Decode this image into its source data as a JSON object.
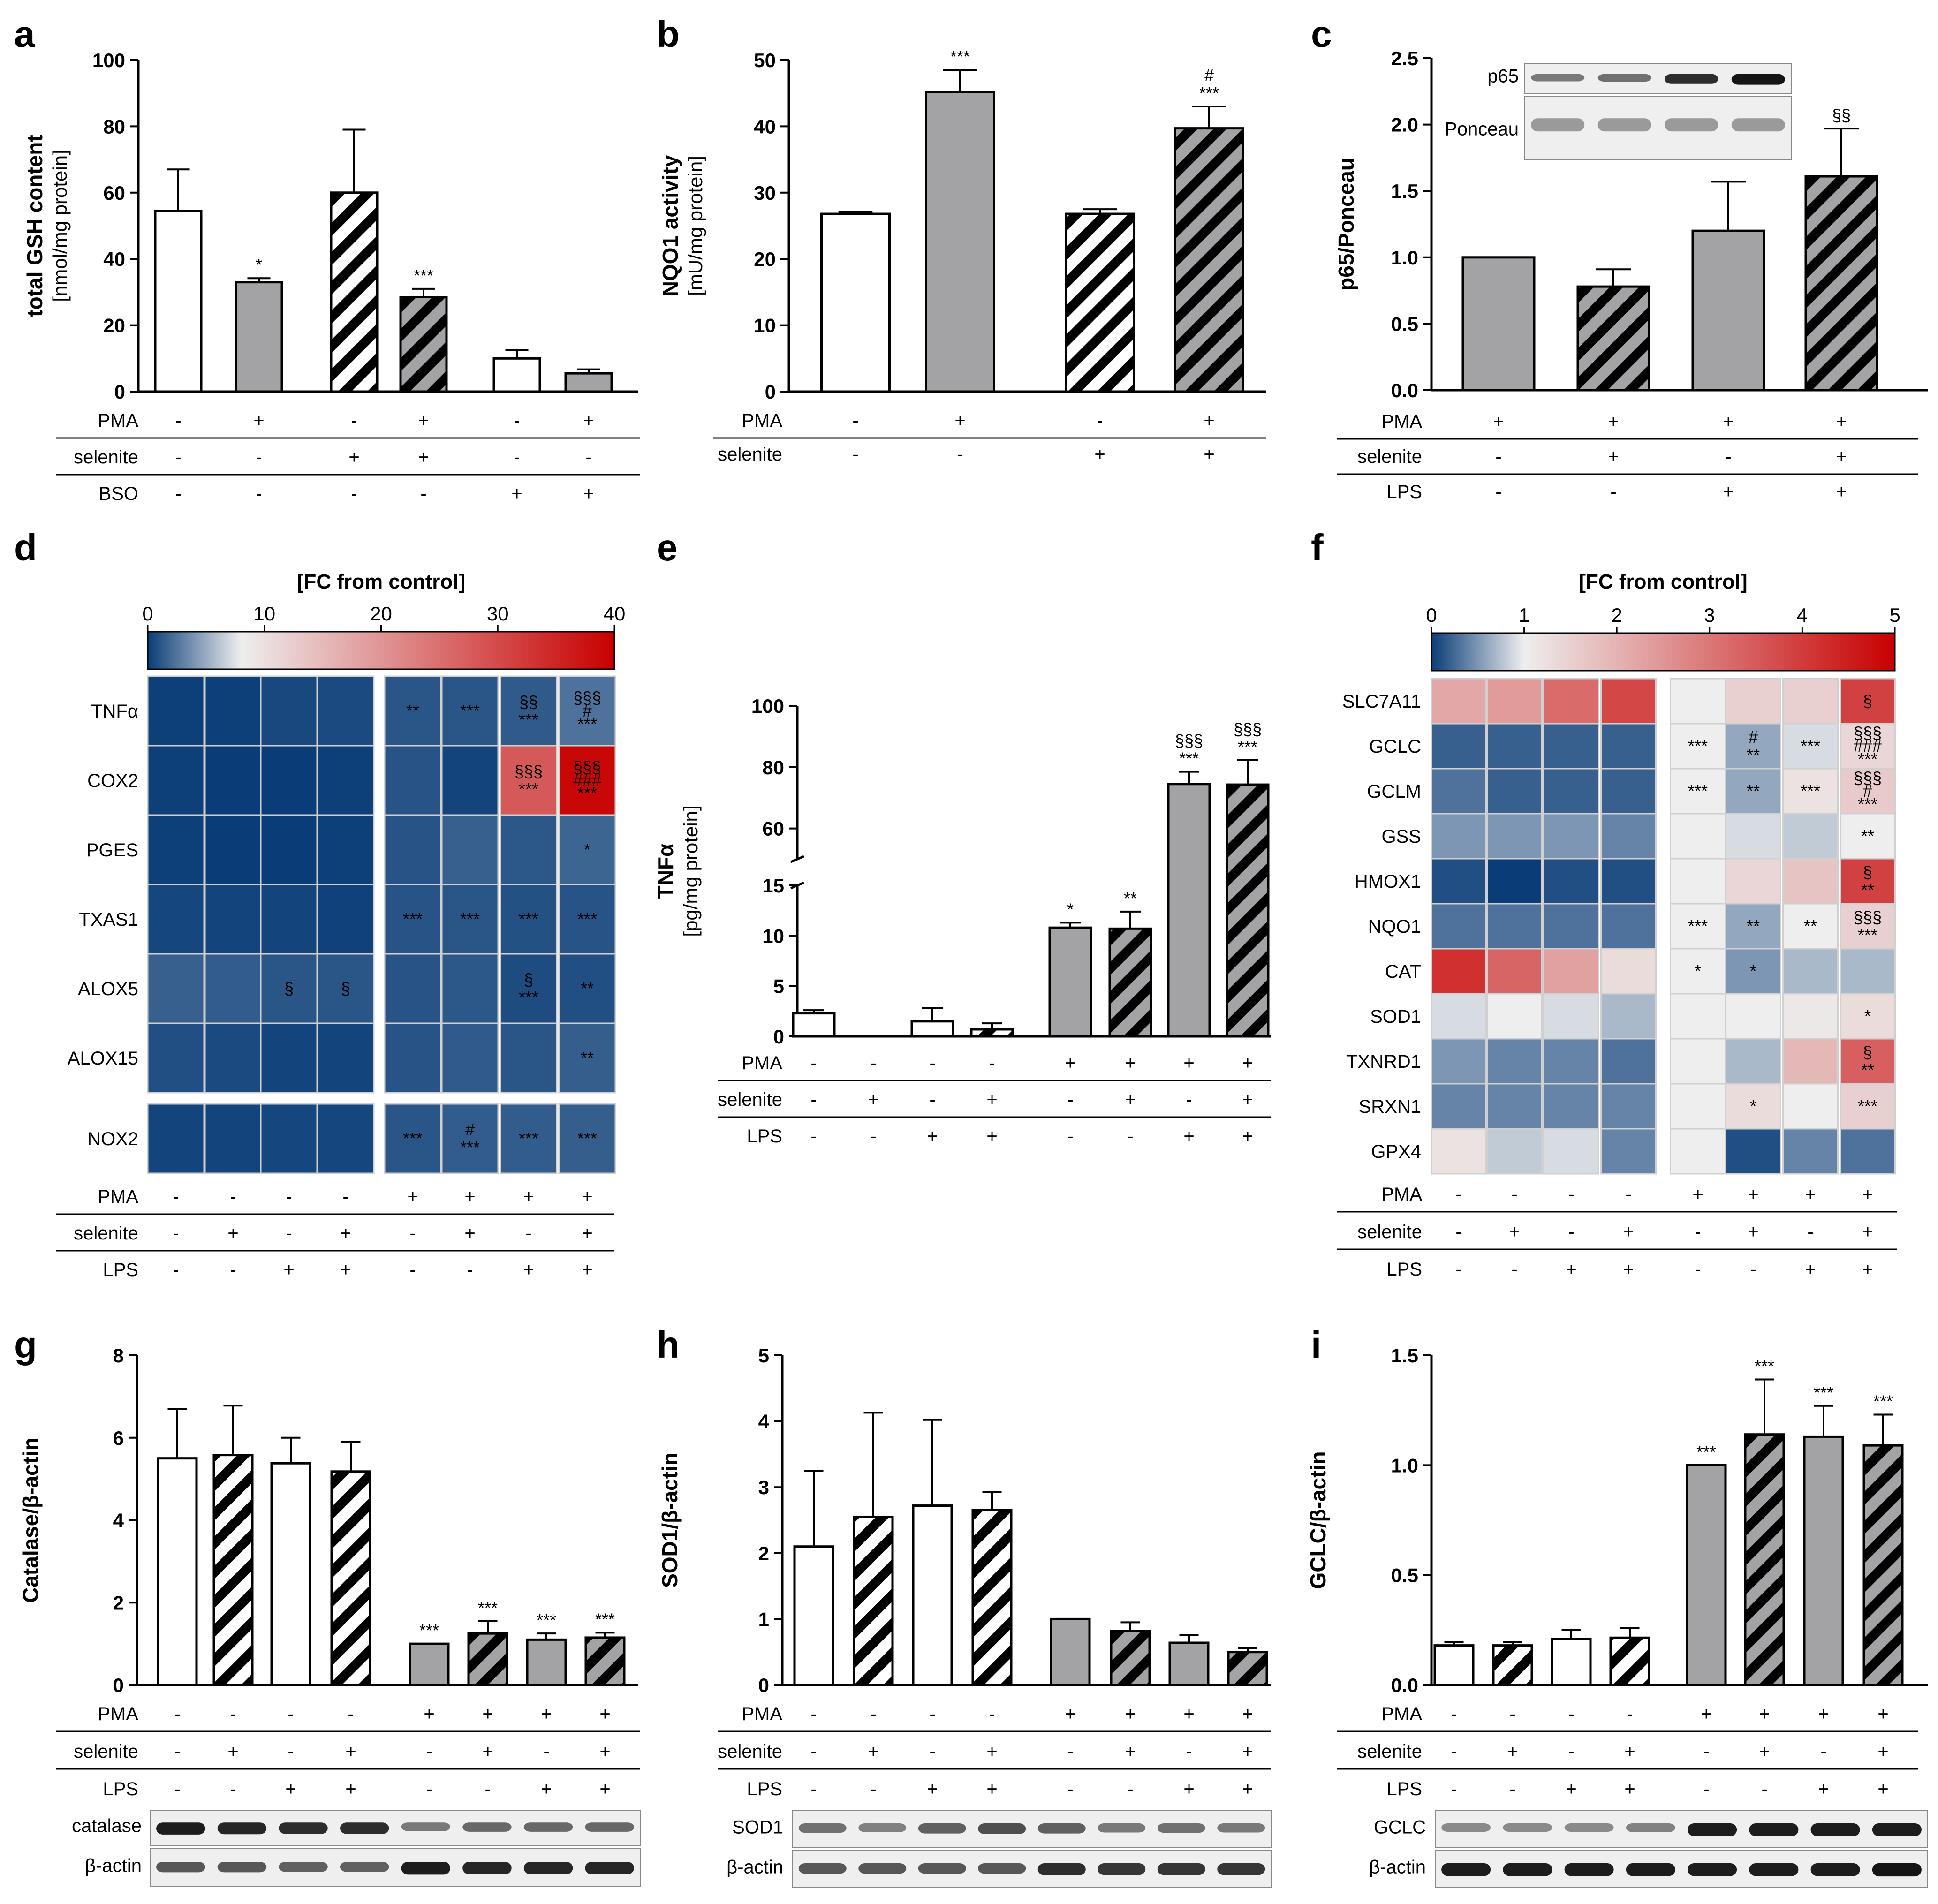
{
  "hatch_color": "#a3a3a6",
  "bar_colors": {
    "white": "#ffffff",
    "gray": "#a3a3a6",
    "axis": "#000000"
  },
  "colormap": {
    "low": "#0a3d77",
    "mid": "#eeeeee",
    "high": "#c80000"
  },
  "chart_data": [
    {
      "id": "a",
      "type": "bar",
      "panel_label": "a",
      "ylabel": "total GSH content",
      "ylabel_sub": "[nmol/mg protein]",
      "ylim": [
        0,
        100
      ],
      "yticks": [
        0,
        20,
        40,
        60,
        80,
        100
      ],
      "bars": [
        {
          "value": 54.5,
          "err": 12.5,
          "style": "white",
          "sig": ""
        },
        {
          "value": 33,
          "err": 1.2,
          "style": "gray",
          "sig": "*"
        },
        {
          "value": 60,
          "err": 19,
          "style": "hatch-white",
          "sig": ""
        },
        {
          "value": 28.5,
          "err": 2.5,
          "style": "hatch-gray",
          "sig": "***"
        },
        {
          "value": 10,
          "err": 2.5,
          "style": "white",
          "sig": ""
        },
        {
          "value": 5.5,
          "err": 1.2,
          "style": "gray",
          "sig": ""
        }
      ],
      "conditions": [
        {
          "label": "PMA",
          "values": [
            "-",
            "+",
            "-",
            "+",
            "-",
            "+"
          ]
        },
        {
          "label": "selenite",
          "values": [
            "-",
            "-",
            "+",
            "+",
            "-",
            "-"
          ]
        },
        {
          "label": "BSO",
          "values": [
            "-",
            "-",
            "-",
            "-",
            "+",
            "+"
          ]
        }
      ]
    },
    {
      "id": "b",
      "type": "bar",
      "panel_label": "b",
      "ylabel": "NQO1 activity",
      "ylabel_sub": "[mU/mg protein]",
      "ylim": [
        0,
        50
      ],
      "yticks": [
        0,
        10,
        20,
        30,
        40,
        50
      ],
      "bars": [
        {
          "value": 26.8,
          "err": 0.3,
          "style": "white",
          "sig": ""
        },
        {
          "value": 45.2,
          "err": 3.3,
          "style": "gray",
          "sig": "***"
        },
        {
          "value": 26.8,
          "err": 0.7,
          "style": "hatch-white",
          "sig": ""
        },
        {
          "value": 39.7,
          "err": 3.3,
          "style": "hatch-gray",
          "sig": "#\n***"
        }
      ],
      "conditions": [
        {
          "label": "PMA",
          "values": [
            "-",
            "+",
            "-",
            "+"
          ]
        },
        {
          "label": "selenite",
          "values": [
            "-",
            "-",
            "+",
            "+"
          ]
        }
      ]
    },
    {
      "id": "c",
      "type": "bar",
      "panel_label": "c",
      "ylabel": "p65/Ponceau",
      "ylabel_sub": "",
      "ylim": [
        0,
        2.5
      ],
      "yticks": [
        "0.0",
        "0.5",
        "1.0",
        "1.5",
        "2.0",
        "2.5"
      ],
      "bars": [
        {
          "value": 1.0,
          "err": 0,
          "style": "gray",
          "sig": ""
        },
        {
          "value": 0.78,
          "err": 0.13,
          "style": "hatch-gray",
          "sig": ""
        },
        {
          "value": 1.2,
          "err": 0.37,
          "style": "gray",
          "sig": ""
        },
        {
          "value": 1.61,
          "err": 0.36,
          "style": "hatch-gray",
          "sig": "§§"
        }
      ],
      "conditions": [
        {
          "label": "PMA",
          "values": [
            "+",
            "+",
            "+",
            "+"
          ]
        },
        {
          "label": "selenite",
          "values": [
            "-",
            "+",
            "-",
            "+"
          ]
        },
        {
          "label": "LPS",
          "values": [
            "-",
            "-",
            "+",
            "+"
          ]
        }
      ],
      "blots": [
        "p65",
        "Ponceau"
      ]
    },
    {
      "id": "d",
      "type": "heatmap",
      "panel_label": "d",
      "colorbar_title": "[FC from control]",
      "colorbar_ticks": [
        "0",
        "10",
        "20",
        "30",
        "40"
      ],
      "vmin": 0,
      "vmax": 40,
      "rows": [
        "TNFα",
        "COX2",
        "PGES",
        "TXAS1",
        "ALOX5",
        "ALOX15",
        "NOX2"
      ],
      "values": [
        [
          0.1,
          0.1,
          0.5,
          0.6,
          1.1,
          1.1,
          1.3,
          2.4
        ],
        [
          0.1,
          0.0,
          0.0,
          0.1,
          1.0,
          0.3,
          28.0,
          39.0
        ],
        [
          0.1,
          0.0,
          0.0,
          0.1,
          1.0,
          1.6,
          1.2,
          1.8
        ],
        [
          0.4,
          0.3,
          0.3,
          0.2,
          1.0,
          1.1,
          0.9,
          1.0
        ],
        [
          1.6,
          1.4,
          1.1,
          1.1,
          1.0,
          1.2,
          0.7,
          0.8
        ],
        [
          0.8,
          0.6,
          0.3,
          0.3,
          1.0,
          1.3,
          1.1,
          1.5
        ],
        [
          0.3,
          0.3,
          0.4,
          0.4,
          1.1,
          1.4,
          1.4,
          1.5
        ]
      ],
      "sig": [
        [
          "",
          "",
          "",
          "",
          "**",
          "***",
          "§§\n***",
          "§§§\n#\n***"
        ],
        [
          "",
          "",
          "",
          "",
          "",
          "",
          "§§§\n***",
          "§§§\n###\n***"
        ],
        [
          "",
          "",
          "",
          "",
          "",
          "",
          "",
          "*"
        ],
        [
          "",
          "",
          "",
          "",
          "***",
          "***",
          "***",
          "***"
        ],
        [
          "",
          "",
          "§",
          "§",
          "",
          "",
          "§\n***",
          "**"
        ],
        [
          "",
          "",
          "",
          "",
          "",
          "",
          "",
          "**"
        ],
        [
          "",
          "",
          "",
          "",
          "***",
          "#\n***",
          "***",
          "***"
        ]
      ],
      "conditions": [
        {
          "label": "PMA",
          "values": [
            "-",
            "-",
            "-",
            "-",
            "+",
            "+",
            "+",
            "+"
          ]
        },
        {
          "label": "selenite",
          "values": [
            "-",
            "+",
            "-",
            "+",
            "-",
            "+",
            "-",
            "+"
          ]
        },
        {
          "label": "LPS",
          "values": [
            "-",
            "-",
            "+",
            "+",
            "-",
            "-",
            "+",
            "+"
          ]
        }
      ]
    },
    {
      "id": "e",
      "type": "bar",
      "panel_label": "e",
      "ylabel": "TNFα",
      "ylabel_sub": "[pg/mg protein]",
      "ylim": [
        0,
        100
      ],
      "axis_break": [
        15,
        50
      ],
      "yticks": [
        0,
        5,
        10,
        15,
        60,
        80,
        100
      ],
      "bars": [
        {
          "value": 2.3,
          "err": 0.3,
          "style": "white",
          "sig": ""
        },
        {
          "value": 0,
          "err": 0,
          "style": "white",
          "sig": ""
        },
        {
          "value": 1.5,
          "err": 1.3,
          "style": "white",
          "sig": ""
        },
        {
          "value": 0.7,
          "err": 0.6,
          "style": "hatch-white",
          "sig": ""
        },
        {
          "value": 10.8,
          "err": 0.5,
          "style": "gray",
          "sig": "*"
        },
        {
          "value": 10.7,
          "err": 1.7,
          "style": "hatch-gray",
          "sig": "**"
        },
        {
          "value": 74.5,
          "err": 4,
          "style": "gray",
          "sig": "§§§\n***"
        },
        {
          "value": 74.3,
          "err": 8,
          "style": "hatch-gray",
          "sig": "§§§\n***"
        }
      ],
      "conditions": [
        {
          "label": "PMA",
          "values": [
            "-",
            "-",
            "-",
            "-",
            "+",
            "+",
            "+",
            "+"
          ]
        },
        {
          "label": "selenite",
          "values": [
            "-",
            "+",
            "-",
            "+",
            "-",
            "+",
            "-",
            "+"
          ]
        },
        {
          "label": "LPS",
          "values": [
            "-",
            "-",
            "+",
            "+",
            "-",
            "-",
            "+",
            "+"
          ]
        }
      ]
    },
    {
      "id": "f",
      "type": "heatmap",
      "panel_label": "f",
      "colorbar_title": "[FC from control]",
      "colorbar_ticks": [
        "0",
        "1",
        "2",
        "3",
        "4",
        "5"
      ],
      "vmin": 0,
      "vmax": 5,
      "rows": [
        "SLC7A11",
        "GCLC",
        "GCLM",
        "GSS",
        "HMOX1",
        "NQO1",
        "CAT",
        "SOD1",
        "TXNRD1",
        "SRXN1",
        "GPX4"
      ],
      "values": [
        [
          2.2,
          2.4,
          3.2,
          3.8,
          1.0,
          1.5,
          1.5,
          3.9
        ],
        [
          0.2,
          0.2,
          0.2,
          0.2,
          1.0,
          0.6,
          0.9,
          1.4
        ],
        [
          0.3,
          0.2,
          0.2,
          0.2,
          1.0,
          0.6,
          1.2,
          1.6
        ],
        [
          0.5,
          0.5,
          0.5,
          0.4,
          1.0,
          0.9,
          0.8,
          1.0
        ],
        [
          0.1,
          0.0,
          0.1,
          0.1,
          1.0,
          1.4,
          1.7,
          3.9
        ],
        [
          0.3,
          0.3,
          0.3,
          0.3,
          1.0,
          0.6,
          1.0,
          1.5
        ],
        [
          4.2,
          3.3,
          2.3,
          1.3,
          1.0,
          0.5,
          0.7,
          0.7
        ],
        [
          0.9,
          1.0,
          0.9,
          0.7,
          1.0,
          1.0,
          1.1,
          1.3
        ],
        [
          0.5,
          0.4,
          0.4,
          0.3,
          1.0,
          0.7,
          1.9,
          3.4
        ],
        [
          0.4,
          0.4,
          0.4,
          0.4,
          1.0,
          1.3,
          1.0,
          1.5
        ],
        [
          1.2,
          0.8,
          0.9,
          0.4,
          1.0,
          0.1,
          0.4,
          0.3
        ]
      ],
      "sig": [
        [
          "",
          "",
          "",
          "",
          "",
          "",
          "",
          "§"
        ],
        [
          "",
          "",
          "",
          "",
          "***",
          "#\n**",
          "***",
          "§§§\n###\n***"
        ],
        [
          "",
          "",
          "",
          "",
          "***",
          "**",
          "***",
          "§§§\n#\n***"
        ],
        [
          "",
          "",
          "",
          "",
          "",
          "",
          "",
          "**"
        ],
        [
          "",
          "",
          "",
          "",
          "",
          "",
          "",
          "§\n**"
        ],
        [
          "",
          "",
          "",
          "",
          "***",
          "**",
          "**",
          "§§§\n***"
        ],
        [
          "",
          "",
          "",
          "",
          "*",
          "*",
          "",
          ""
        ],
        [
          "",
          "",
          "",
          "",
          "",
          "",
          "",
          "*"
        ],
        [
          "",
          "",
          "",
          "",
          "",
          "",
          "",
          "§\n**"
        ],
        [
          "",
          "",
          "",
          "",
          "",
          "*",
          "",
          "***"
        ],
        [
          "",
          "",
          "",
          "",
          "",
          "",
          "",
          ""
        ]
      ],
      "conditions": [
        {
          "label": "PMA",
          "values": [
            "-",
            "-",
            "-",
            "-",
            "+",
            "+",
            "+",
            "+"
          ]
        },
        {
          "label": "selenite",
          "values": [
            "-",
            "+",
            "-",
            "+",
            "-",
            "+",
            "-",
            "+"
          ]
        },
        {
          "label": "LPS",
          "values": [
            "-",
            "-",
            "+",
            "+",
            "-",
            "-",
            "+",
            "+"
          ]
        }
      ]
    },
    {
      "id": "g",
      "type": "bar",
      "panel_label": "g",
      "ylabel": "Catalase/β-actin",
      "ylabel_sub": "",
      "ylim": [
        0,
        8
      ],
      "yticks": [
        0,
        2,
        4,
        6,
        8
      ],
      "bars": [
        {
          "value": 5.5,
          "err": 1.2,
          "style": "white",
          "sig": ""
        },
        {
          "value": 5.58,
          "err": 1.2,
          "style": "hatch-white",
          "sig": ""
        },
        {
          "value": 5.38,
          "err": 0.62,
          "style": "white",
          "sig": ""
        },
        {
          "value": 5.18,
          "err": 0.72,
          "style": "hatch-white",
          "sig": ""
        },
        {
          "value": 1.0,
          "err": 0,
          "style": "gray",
          "sig": "***"
        },
        {
          "value": 1.25,
          "err": 0.3,
          "style": "hatch-gray",
          "sig": "***"
        },
        {
          "value": 1.1,
          "err": 0.15,
          "style": "gray",
          "sig": "***"
        },
        {
          "value": 1.15,
          "err": 0.12,
          "style": "hatch-gray",
          "sig": "***"
        }
      ],
      "conditions": [
        {
          "label": "PMA",
          "values": [
            "-",
            "-",
            "-",
            "-",
            "+",
            "+",
            "+",
            "+"
          ]
        },
        {
          "label": "selenite",
          "values": [
            "-",
            "+",
            "-",
            "+",
            "-",
            "+",
            "-",
            "+"
          ]
        },
        {
          "label": "LPS",
          "values": [
            "-",
            "-",
            "+",
            "+",
            "-",
            "-",
            "+",
            "+"
          ]
        }
      ],
      "blots": [
        "catalase",
        "β-actin"
      ]
    },
    {
      "id": "h",
      "type": "bar",
      "panel_label": "h",
      "ylabel": "SOD1/β-actin",
      "ylabel_sub": "",
      "ylim": [
        0,
        5
      ],
      "yticks": [
        0,
        1,
        2,
        3,
        4,
        5
      ],
      "bars": [
        {
          "value": 2.1,
          "err": 1.15,
          "style": "white",
          "sig": ""
        },
        {
          "value": 2.55,
          "err": 1.58,
          "style": "hatch-white",
          "sig": ""
        },
        {
          "value": 2.72,
          "err": 1.3,
          "style": "white",
          "sig": ""
        },
        {
          "value": 2.65,
          "err": 0.28,
          "style": "hatch-white",
          "sig": ""
        },
        {
          "value": 1.0,
          "err": 0,
          "style": "gray",
          "sig": ""
        },
        {
          "value": 0.82,
          "err": 0.13,
          "style": "hatch-gray",
          "sig": ""
        },
        {
          "value": 0.64,
          "err": 0.12,
          "style": "gray",
          "sig": ""
        },
        {
          "value": 0.5,
          "err": 0.06,
          "style": "hatch-gray",
          "sig": ""
        }
      ],
      "conditions": [
        {
          "label": "PMA",
          "values": [
            "-",
            "-",
            "-",
            "-",
            "+",
            "+",
            "+",
            "+"
          ]
        },
        {
          "label": "selenite",
          "values": [
            "-",
            "+",
            "-",
            "+",
            "-",
            "+",
            "-",
            "+"
          ]
        },
        {
          "label": "LPS",
          "values": [
            "-",
            "-",
            "+",
            "+",
            "-",
            "-",
            "+",
            "+"
          ]
        }
      ],
      "blots": [
        "SOD1",
        "β-actin"
      ]
    },
    {
      "id": "i",
      "type": "bar",
      "panel_label": "i",
      "ylabel": "GCLC/β-actin",
      "ylabel_sub": "",
      "ylim": [
        0,
        1.5
      ],
      "yticks": [
        "0.0",
        "0.5",
        "1.0",
        "1.5"
      ],
      "bars": [
        {
          "value": 0.18,
          "err": 0.015,
          "style": "white",
          "sig": ""
        },
        {
          "value": 0.18,
          "err": 0.015,
          "style": "hatch-white",
          "sig": ""
        },
        {
          "value": 0.21,
          "err": 0.04,
          "style": "white",
          "sig": ""
        },
        {
          "value": 0.215,
          "err": 0.045,
          "style": "hatch-white",
          "sig": ""
        },
        {
          "value": 1.0,
          "err": 0,
          "style": "gray",
          "sig": "***"
        },
        {
          "value": 1.14,
          "err": 0.25,
          "style": "hatch-gray",
          "sig": "***"
        },
        {
          "value": 1.13,
          "err": 0.14,
          "style": "gray",
          "sig": "***"
        },
        {
          "value": 1.09,
          "err": 0.14,
          "style": "hatch-gray",
          "sig": "***"
        }
      ],
      "conditions": [
        {
          "label": "PMA",
          "values": [
            "-",
            "-",
            "-",
            "-",
            "+",
            "+",
            "+",
            "+"
          ]
        },
        {
          "label": "selenite",
          "values": [
            "-",
            "+",
            "-",
            "+",
            "-",
            "+",
            "-",
            "+"
          ]
        },
        {
          "label": "LPS",
          "values": [
            "-",
            "-",
            "+",
            "+",
            "-",
            "-",
            "+",
            "+"
          ]
        }
      ],
      "blots": [
        "GCLC",
        "β-actin"
      ]
    }
  ]
}
